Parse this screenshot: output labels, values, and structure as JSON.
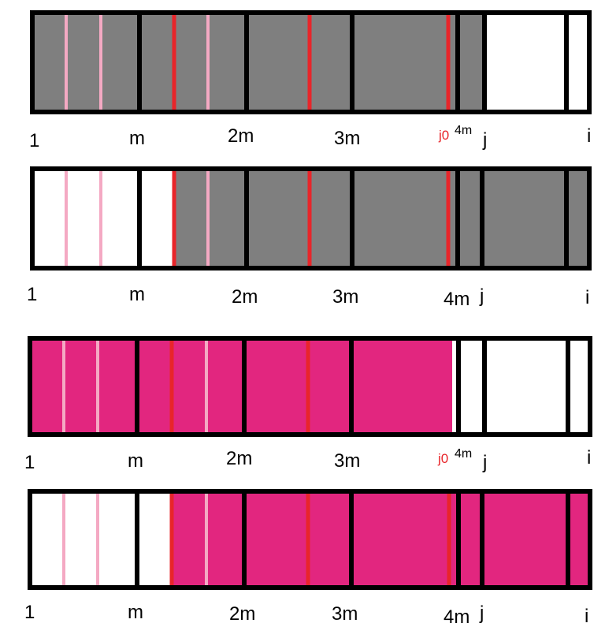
{
  "colors": {
    "gray_fill": "#7f7f7f",
    "magenta_fill": "#e2267f",
    "white_fill": "#ffffff",
    "border": "#000000",
    "red_divider": "#e8252a",
    "pink_divider": "#f4a9c3",
    "red_label": "#e8252a"
  },
  "diagrams": [
    {
      "labels": {
        "one": "1",
        "m": "m",
        "two_m": "2m",
        "three_m": "3m",
        "j0": "j0",
        "four_m": "4m",
        "j": "j",
        "i": "i"
      }
    },
    {
      "labels": {
        "one": "1",
        "m": "m",
        "two_m": "2m",
        "three_m": "3m",
        "four_m": "4m",
        "j": "j",
        "i": "i"
      }
    },
    {
      "labels": {
        "one": "1",
        "m": "m",
        "two_m": "2m",
        "three_m": "3m",
        "j0": "j0",
        "four_m": "4m",
        "j": "j",
        "i": "i"
      }
    },
    {
      "labels": {
        "one": "1",
        "m": "m",
        "two_m": "2m",
        "three_m": "3m",
        "four_m": "4m",
        "j": "j",
        "i": "i"
      }
    }
  ]
}
